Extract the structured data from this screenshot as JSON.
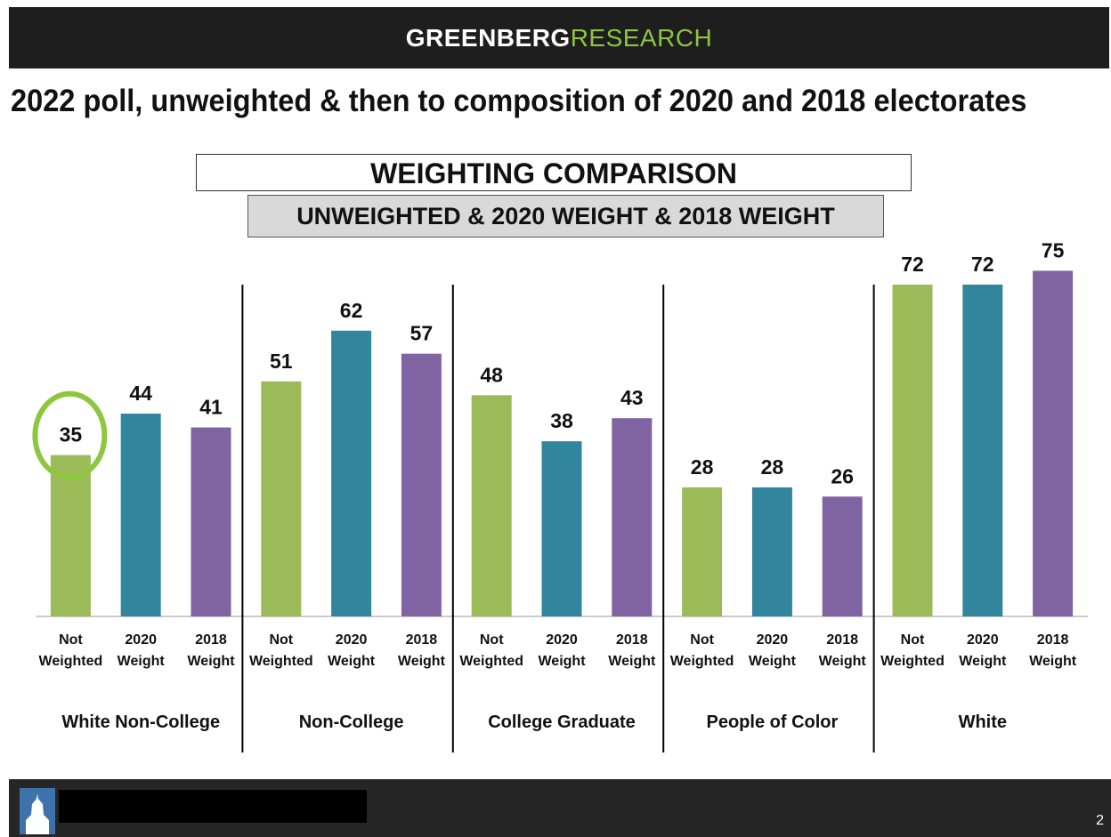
{
  "header": {
    "brand_bold": "GREENBERG",
    "brand_light": "RESEARCH"
  },
  "page_title": "2022 poll, unweighted & then to composition of 2020 and 2018 electorates",
  "box_title": "WEIGHTING COMPARISON",
  "box_subtitle": "UNWEIGHTED & 2020 WEIGHT & 2018 WEIGHT",
  "footer": {
    "page_number": "2"
  },
  "colors": {
    "not_weighted": "#9bbb59",
    "weight_2020": "#31859c",
    "weight_2018": "#8064a2",
    "highlight_circle": "#8dc63f"
  },
  "chart_data": {
    "type": "bar",
    "title": "WEIGHTING COMPARISON",
    "subtitle": "UNWEIGHTED & 2020 WEIGHT & 2018 WEIGHT",
    "ylim": [
      0,
      80
    ],
    "grid": false,
    "bar_labels": [
      [
        "Not",
        "Weighted"
      ],
      [
        "2020",
        "Weight"
      ],
      [
        "2018",
        "Weight"
      ]
    ],
    "groups": [
      {
        "name": "White Non-College",
        "values": [
          35,
          44,
          41
        ],
        "highlight_index": 0
      },
      {
        "name": "Non-College",
        "values": [
          51,
          62,
          57
        ]
      },
      {
        "name": "College Graduate",
        "values": [
          48,
          38,
          43
        ]
      },
      {
        "name": "People of Color",
        "values": [
          28,
          28,
          26
        ]
      },
      {
        "name": "White",
        "values": [
          72,
          72,
          75
        ]
      }
    ]
  }
}
